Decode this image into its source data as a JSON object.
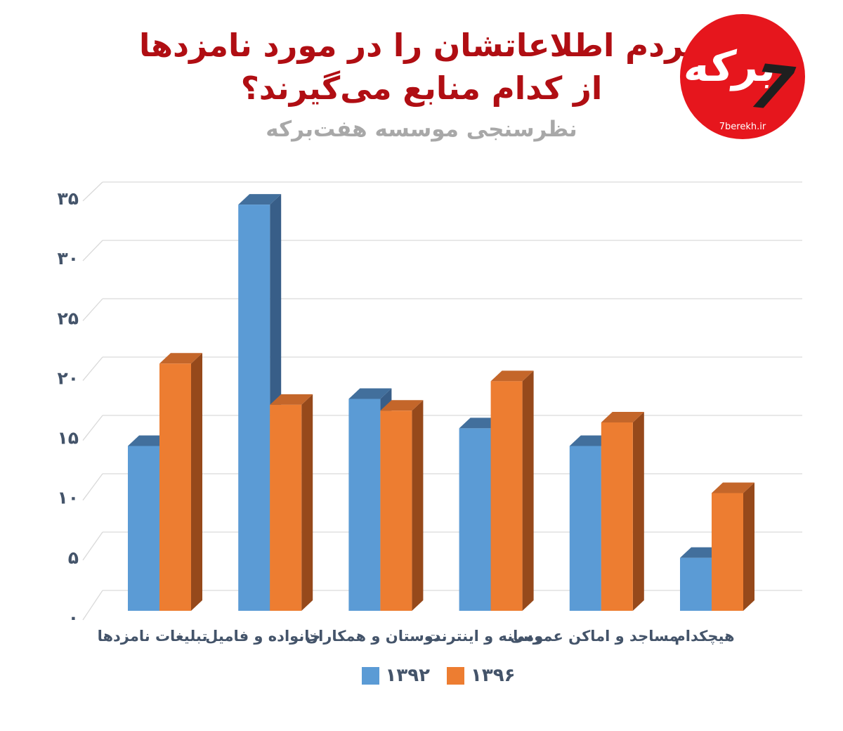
{
  "header": {
    "title_line1": "مردم اطلاعاتشان را در مورد نامزدها",
    "title_line2": "از کدام منابع می‌گیرند؟",
    "subtitle": "نظرسنجی موسسه هفت‌برکه",
    "title_color": "#b00e13",
    "subtitle_color": "#a8a8a8"
  },
  "logo": {
    "mark_text": "برکه",
    "seven_text": "7",
    "url": "7berekh.ir",
    "bg_color": "#e6161d",
    "mark_color": "#ffffff",
    "seven_color": "#1f1f1f"
  },
  "chart_data": {
    "type": "bar",
    "style": "3d-clustered",
    "title": "مردم اطلاعاتشان را در مورد نامزدها از کدام منابع می‌گیرند؟",
    "subtitle": "نظرسنجی موسسه هفت‌برکه",
    "categories": [
      "تبلیغات نامزدها",
      "خانواده و فامیل",
      "دوستان و همکاران",
      "رسانه و اینترنت",
      "مساجد و اماکن عمومی",
      "هیچکدام"
    ],
    "series": [
      {
        "name": "۱۳۹۲",
        "color": "#5b9bd5",
        "color_top": "#426f9c",
        "color_side": "#385e88",
        "values": [
          14,
          34.5,
          18,
          15.5,
          14,
          4.5
        ]
      },
      {
        "name": "۱۳۹۶",
        "color": "#ed7d31",
        "color_top": "#c4662a",
        "color_side": "#96491b",
        "values": [
          21,
          17.5,
          17,
          19.5,
          16,
          10
        ]
      }
    ],
    "xlabel": "",
    "ylabel": "",
    "ylim": [
      0,
      35
    ],
    "y_step": 5,
    "y_tick_labels": [
      "۰",
      "۵",
      "۱۰",
      "۱۵",
      "۲۰",
      "۲۵",
      "۳۰",
      "۳۵"
    ],
    "grid": true,
    "grid_color": "#d9d9d9",
    "label_color": "#44546a",
    "legend_position": "bottom",
    "category_order": "left-to-right"
  }
}
